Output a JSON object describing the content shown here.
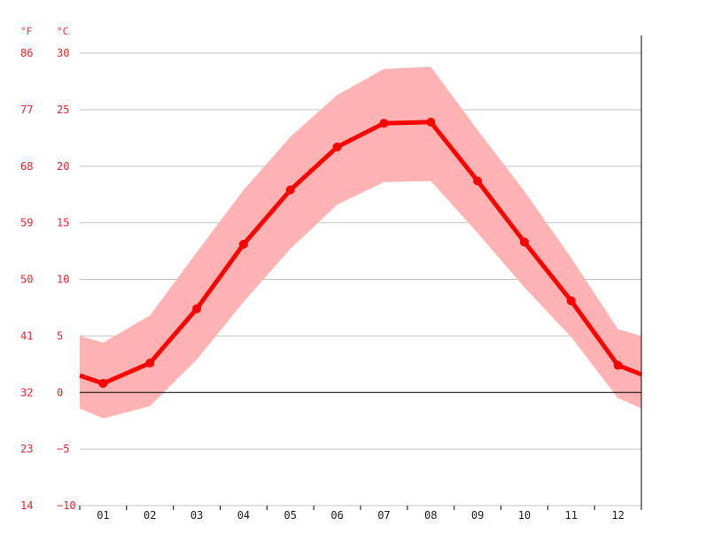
{
  "chart_data": {
    "type": "line",
    "categories": [
      "01",
      "02",
      "03",
      "04",
      "05",
      "06",
      "07",
      "08",
      "09",
      "10",
      "11",
      "12"
    ],
    "x_edge_labels": [
      "",
      ""
    ],
    "series": [
      {
        "values": [
          0.8,
          2.6,
          7.4,
          13.1,
          17.9,
          21.7,
          23.8,
          23.9,
          18.7,
          13.3,
          8.1,
          2.4
        ],
        "edge_values": [
          1.5,
          1.6
        ],
        "color": "#ff0000"
      }
    ],
    "range_band": {
      "low": [
        -2.3,
        -1.2,
        2.9,
        8.0,
        12.7,
        16.6,
        18.6,
        18.7,
        14.1,
        9.3,
        4.9,
        -0.5
      ],
      "high": [
        4.4,
        6.8,
        12.4,
        17.9,
        22.6,
        26.3,
        28.6,
        28.8,
        23.2,
        17.8,
        11.9,
        5.6
      ],
      "edge_low": [
        -1.4,
        -1.4
      ],
      "edge_high": [
        5.0,
        5.0
      ],
      "color": "#ffb3b3"
    },
    "y_ticks_c": [
      "30",
      "25",
      "20",
      "15",
      "10",
      "5",
      "0",
      "−5",
      "−10"
    ],
    "y_ticks_f": [
      "86",
      "77",
      "68",
      "59",
      "50",
      "41",
      "32",
      "23",
      "14"
    ],
    "y_unit_f": "°F",
    "y_unit_c": "°C",
    "ylim": [
      -10,
      30
    ],
    "grid": true,
    "zero_line": true
  }
}
